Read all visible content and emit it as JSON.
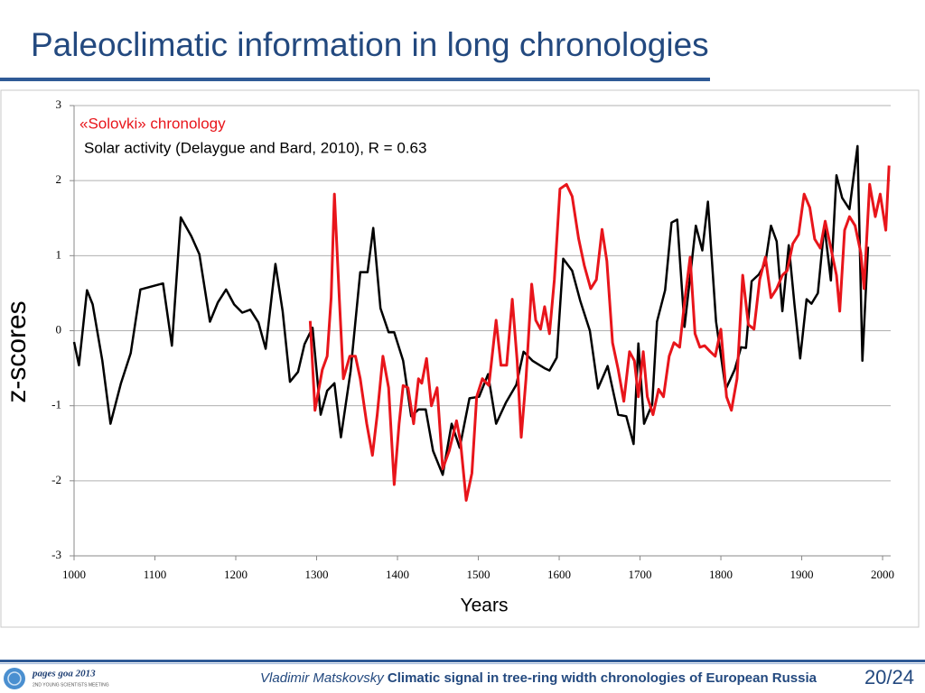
{
  "title": "Paleoclimatic information in long chronologies",
  "chart_data": {
    "type": "line",
    "xlabel": "Years",
    "ylabel": "z-scores",
    "xlim": [
      1000,
      2010
    ],
    "ylim": [
      -3,
      3
    ],
    "xticks": [
      1000,
      1100,
      1200,
      1300,
      1400,
      1500,
      1600,
      1700,
      1800,
      1900,
      2000
    ],
    "yticks": [
      -3,
      -2,
      -1,
      0,
      1,
      2,
      3
    ],
    "grid": true,
    "series": [
      {
        "name": "«Solovki» chronology",
        "color": "#e8151b",
        "x": [
          1292,
          1298,
          1307,
          1313,
          1318,
          1322,
          1328,
          1333,
          1341,
          1348,
          1354,
          1362,
          1369,
          1375,
          1382,
          1389,
          1396,
          1402,
          1407,
          1413,
          1420,
          1426,
          1430,
          1436,
          1442,
          1449,
          1456,
          1464,
          1473,
          1478,
          1485,
          1492,
          1498,
          1505,
          1513,
          1522,
          1528,
          1535,
          1542,
          1548,
          1553,
          1559,
          1566,
          1571,
          1577,
          1582,
          1588,
          1594,
          1601,
          1609,
          1616,
          1624,
          1631,
          1639,
          1646,
          1653,
          1659,
          1666,
          1673,
          1680,
          1687,
          1693,
          1698,
          1704,
          1709,
          1716,
          1723,
          1729,
          1736,
          1742,
          1749,
          1755,
          1762,
          1768,
          1774,
          1780,
          1787,
          1793,
          1800,
          1807,
          1813,
          1820,
          1827,
          1834,
          1841,
          1848,
          1855,
          1862,
          1869,
          1876,
          1882,
          1889,
          1896,
          1903,
          1910,
          1916,
          1923,
          1929,
          1936,
          1943,
          1947,
          1953,
          1959,
          1966,
          1973,
          1977,
          1984,
          1991,
          1997,
          2004,
          2008
        ],
        "values": [
          0.13,
          -1.06,
          -0.52,
          -0.34,
          0.44,
          1.82,
          0.44,
          -0.64,
          -0.34,
          -0.34,
          -0.64,
          -1.24,
          -1.66,
          -1.12,
          -0.34,
          -0.76,
          -2.05,
          -1.24,
          -0.73,
          -0.76,
          -1.24,
          -0.64,
          -0.7,
          -0.37,
          -1.0,
          -0.76,
          -1.84,
          -1.6,
          -1.2,
          -1.48,
          -2.26,
          -1.9,
          -0.88,
          -0.64,
          -0.73,
          0.14,
          -0.46,
          -0.46,
          0.42,
          -0.4,
          -1.42,
          -0.64,
          0.62,
          0.14,
          0.02,
          0.32,
          -0.04,
          0.68,
          1.89,
          1.95,
          1.79,
          1.23,
          0.87,
          0.56,
          0.68,
          1.35,
          0.93,
          -0.16,
          -0.52,
          -0.94,
          -0.28,
          -0.4,
          -0.88,
          -0.28,
          -0.88,
          -1.12,
          -0.78,
          -0.88,
          -0.34,
          -0.16,
          -0.22,
          0.38,
          0.98,
          -0.04,
          -0.22,
          -0.2,
          -0.28,
          -0.34,
          0.02,
          -0.88,
          -1.06,
          -0.64,
          0.74,
          0.08,
          0.02,
          0.68,
          0.98,
          0.44,
          0.56,
          0.74,
          0.8,
          1.16,
          1.28,
          1.82,
          1.64,
          1.22,
          1.1,
          1.46,
          1.1,
          0.74,
          0.26,
          1.34,
          1.52,
          1.4,
          1.04,
          0.56,
          1.95,
          1.52,
          1.82,
          1.34,
          2.2
        ]
      },
      {
        "name": "Solar activity (Delaygue and Bard, 2010), R = 0.63",
        "color": "#000000",
        "x": [
          1000,
          1006,
          1016,
          1023,
          1035,
          1045,
          1058,
          1070,
          1082,
          1110,
          1121,
          1132,
          1145,
          1155,
          1168,
          1178,
          1188,
          1198,
          1208,
          1218,
          1228,
          1237,
          1249,
          1258,
          1267,
          1277,
          1285,
          1295,
          1305,
          1313,
          1322,
          1330,
          1342,
          1354,
          1363,
          1370,
          1379,
          1389,
          1396,
          1407,
          1417,
          1426,
          1435,
          1444,
          1456,
          1467,
          1477,
          1489,
          1501,
          1512,
          1522,
          1534,
          1547,
          1556,
          1567,
          1582,
          1588,
          1597,
          1605,
          1616,
          1626,
          1638,
          1648,
          1660,
          1673,
          1683,
          1692,
          1698,
          1705,
          1715,
          1721,
          1731,
          1739,
          1746,
          1755,
          1769,
          1777,
          1784,
          1794,
          1806,
          1817,
          1825,
          1831,
          1838,
          1847,
          1855,
          1862,
          1869,
          1876,
          1884,
          1891,
          1898,
          1906,
          1912,
          1920,
          1928,
          1936,
          1943,
          1950,
          1959,
          1969,
          1975,
          1982
        ],
        "values": [
          -0.15,
          -0.46,
          0.54,
          0.35,
          -0.4,
          -1.24,
          -0.7,
          -0.3,
          0.55,
          0.63,
          -0.2,
          1.51,
          1.26,
          1.02,
          0.12,
          0.38,
          0.55,
          0.35,
          0.24,
          0.28,
          0.11,
          -0.24,
          0.89,
          0.26,
          -0.68,
          -0.55,
          -0.18,
          0.04,
          -1.12,
          -0.8,
          -0.7,
          -1.42,
          -0.54,
          0.78,
          0.78,
          1.37,
          0.3,
          -0.02,
          -0.02,
          -0.4,
          -1.14,
          -1.05,
          -1.05,
          -1.6,
          -1.92,
          -1.24,
          -1.56,
          -0.9,
          -0.88,
          -0.58,
          -1.24,
          -0.96,
          -0.72,
          -0.28,
          -0.4,
          -0.5,
          -0.53,
          -0.36,
          0.96,
          0.8,
          0.4,
          0,
          -0.77,
          -0.47,
          -1.12,
          -1.14,
          -1.51,
          -0.17,
          -1.24,
          -0.98,
          0.12,
          0.54,
          1.44,
          1.48,
          0.05,
          1.4,
          1.07,
          1.72,
          0.12,
          -0.78,
          -0.52,
          -0.22,
          -0.23,
          0.66,
          0.75,
          0.9,
          1.4,
          1.19,
          0.26,
          1.14,
          0.35,
          -0.37,
          0.42,
          0.36,
          0.5,
          1.4,
          0.67,
          2.07,
          1.77,
          1.62,
          2.46,
          -0.4,
          1.12
        ]
      }
    ]
  },
  "footer": {
    "author": "Vladimir Matskovsky",
    "talk_title": "Climatic signal in tree-ring width chronologies of European Russia",
    "page": "20/24"
  },
  "logo": {
    "title": "pages goa 2013",
    "subtitle": "2ND YOUNG SCIENTISTS MEETING"
  }
}
